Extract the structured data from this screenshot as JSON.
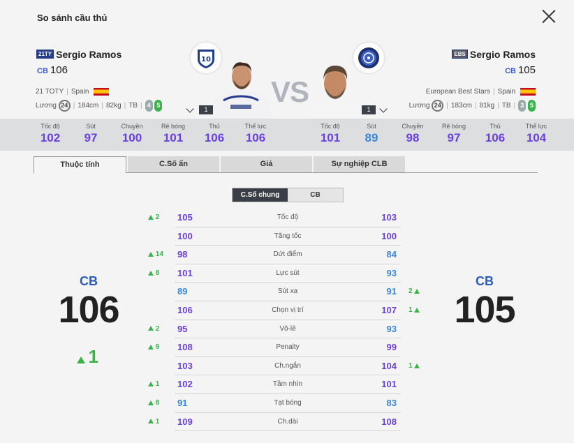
{
  "window": {
    "title": "So sánh cầu thủ"
  },
  "left_player": {
    "season_tag": "21TY",
    "name": "Sergio Ramos",
    "position": "CB",
    "ovr": "106",
    "season_name": "21 TOTY",
    "nation": "Spain",
    "salary_label": "Lương",
    "salary": "24",
    "height": "184cm",
    "weight": "82kg",
    "body": "TB",
    "weak_foot": "4",
    "skill": "5",
    "level": "1",
    "stats": [
      {
        "label": "Tốc độ",
        "value": "102",
        "color": "purple"
      },
      {
        "label": "Sút",
        "value": "97",
        "color": "purple"
      },
      {
        "label": "Chuyền",
        "value": "100",
        "color": "purple"
      },
      {
        "label": "Rê bóng",
        "value": "101",
        "color": "purple"
      },
      {
        "label": "Thủ",
        "value": "106",
        "color": "purple"
      },
      {
        "label": "Thể lực",
        "value": "106",
        "color": "purple"
      }
    ]
  },
  "right_player": {
    "season_tag": "EBS",
    "name": "Sergio Ramos",
    "position": "CB",
    "ovr": "105",
    "season_name": "European Best Stars",
    "nation": "Spain",
    "salary_label": "Lương",
    "salary": "24",
    "height": "183cm",
    "weight": "81kg",
    "body": "TB",
    "weak_foot": "3",
    "skill": "5",
    "level": "1",
    "stats": [
      {
        "label": "Tốc độ",
        "value": "101",
        "color": "purple"
      },
      {
        "label": "Sút",
        "value": "89",
        "color": "blue"
      },
      {
        "label": "Chuyền",
        "value": "98",
        "color": "purple"
      },
      {
        "label": "Rê bóng",
        "value": "97",
        "color": "purple"
      },
      {
        "label": "Thủ",
        "value": "106",
        "color": "purple"
      },
      {
        "label": "Thể lực",
        "value": "104",
        "color": "purple"
      }
    ]
  },
  "vs_label": "VS",
  "tabs": [
    "Thuộc tính",
    "C.Số ẩn",
    "Giá",
    "Sự nghiệp CLB"
  ],
  "segment": {
    "options": [
      "C.Số chung",
      "CB"
    ],
    "active": 0
  },
  "summary": {
    "left_pos": "CB",
    "left_ovr": "106",
    "left_diff": "1",
    "right_pos": "CB",
    "right_ovr": "105"
  },
  "comparison": [
    {
      "name": "Tốc độ",
      "left": "105",
      "right": "103",
      "left_diff": "2",
      "right_diff": "",
      "lc": "purple",
      "rc": "purple"
    },
    {
      "name": "Tăng tốc",
      "left": "100",
      "right": "100",
      "left_diff": "",
      "right_diff": "",
      "lc": "purple",
      "rc": "purple"
    },
    {
      "name": "Dứt điểm",
      "left": "98",
      "right": "84",
      "left_diff": "14",
      "right_diff": "",
      "lc": "purple",
      "rc": "blue"
    },
    {
      "name": "Lực sút",
      "left": "101",
      "right": "93",
      "left_diff": "8",
      "right_diff": "",
      "lc": "purple",
      "rc": "blue"
    },
    {
      "name": "Sút xa",
      "left": "89",
      "right": "91",
      "left_diff": "",
      "right_diff": "2",
      "lc": "blue",
      "rc": "blue"
    },
    {
      "name": "Chọn vị trí",
      "left": "106",
      "right": "107",
      "left_diff": "",
      "right_diff": "1",
      "lc": "purple",
      "rc": "purple"
    },
    {
      "name": "Vô-lê",
      "left": "95",
      "right": "93",
      "left_diff": "2",
      "right_diff": "",
      "lc": "purple",
      "rc": "blue"
    },
    {
      "name": "Penalty",
      "left": "108",
      "right": "99",
      "left_diff": "9",
      "right_diff": "",
      "lc": "purple",
      "rc": "purple"
    },
    {
      "name": "Ch.ngắn",
      "left": "103",
      "right": "104",
      "left_diff": "",
      "right_diff": "1",
      "lc": "purple",
      "rc": "purple"
    },
    {
      "name": "Tầm nhìn",
      "left": "102",
      "right": "101",
      "left_diff": "1",
      "right_diff": "",
      "lc": "purple",
      "rc": "purple"
    },
    {
      "name": "Tạt bóng",
      "left": "91",
      "right": "83",
      "left_diff": "8",
      "right_diff": "",
      "lc": "blue",
      "rc": "blue"
    },
    {
      "name": "Ch.dài",
      "left": "109",
      "right": "108",
      "left_diff": "1",
      "right_diff": "",
      "lc": "purple",
      "rc": "purple"
    }
  ],
  "colors": {
    "purple": "#6a3fe0",
    "blue": "#3a86d8",
    "green": "#3cb34a"
  },
  "icons": {
    "close": "close-icon",
    "flag": "spain-flag-icon",
    "club_left": "real-madrid-crest-icon",
    "club_right": "club-crest-icon",
    "expand": "chevron-down-icon",
    "up": "triangle-up-icon"
  }
}
